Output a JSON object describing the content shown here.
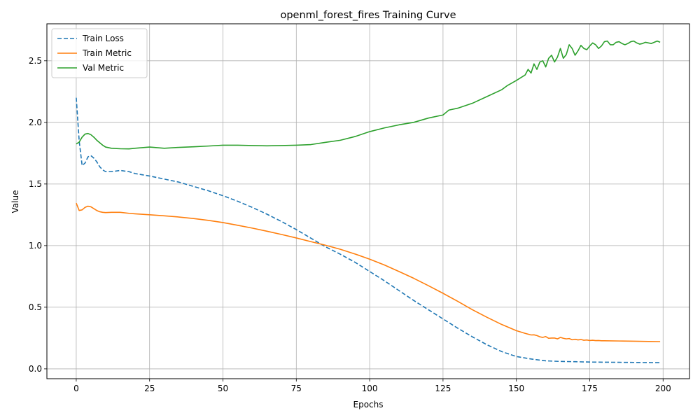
{
  "chart_data": {
    "type": "line",
    "title": "openml_forest_fires Training Curve",
    "xlabel": "Epochs",
    "ylabel": "Value",
    "xlim": [
      -10,
      209
    ],
    "ylim": [
      -0.08,
      2.8
    ],
    "xticks": [
      0,
      25,
      50,
      75,
      100,
      125,
      150,
      175,
      200
    ],
    "yticks": [
      0.0,
      0.5,
      1.0,
      1.5,
      2.0,
      2.5
    ],
    "xtick_labels": [
      "0",
      "25",
      "50",
      "75",
      "100",
      "125",
      "150",
      "175",
      "200"
    ],
    "ytick_labels": [
      "0.0",
      "0.5",
      "1.0",
      "1.5",
      "2.0",
      "2.5"
    ],
    "grid": true,
    "legend_position": "top-left",
    "series": [
      {
        "name": "Train Loss",
        "color": "#1f77b4",
        "dash": "dashed",
        "x": [
          0,
          1,
          2,
          3,
          4,
          5,
          6,
          7,
          8,
          9,
          10,
          12,
          15,
          18,
          20,
          25,
          30,
          35,
          40,
          45,
          50,
          55,
          60,
          65,
          70,
          75,
          80,
          85,
          90,
          95,
          100,
          105,
          110,
          115,
          120,
          125,
          130,
          135,
          140,
          145,
          150,
          155,
          160,
          165,
          170,
          175,
          180,
          185,
          190,
          195,
          199
        ],
        "y": [
          2.2,
          1.85,
          1.65,
          1.67,
          1.72,
          1.73,
          1.71,
          1.68,
          1.64,
          1.615,
          1.6,
          1.6,
          1.61,
          1.6,
          1.585,
          1.565,
          1.54,
          1.515,
          1.48,
          1.445,
          1.405,
          1.36,
          1.31,
          1.255,
          1.195,
          1.13,
          1.06,
          0.99,
          0.93,
          0.865,
          0.79,
          0.715,
          0.635,
          0.555,
          0.48,
          0.405,
          0.33,
          0.26,
          0.195,
          0.14,
          0.1,
          0.08,
          0.065,
          0.06,
          0.058,
          0.055,
          0.054,
          0.053,
          0.052,
          0.051,
          0.05
        ]
      },
      {
        "name": "Train Metric",
        "color": "#ff7f0e",
        "dash": "solid",
        "x": [
          0,
          1,
          2,
          3,
          4,
          5,
          6,
          7,
          8,
          9,
          10,
          12,
          15,
          18,
          20,
          25,
          30,
          35,
          40,
          45,
          50,
          55,
          60,
          65,
          70,
          75,
          80,
          85,
          90,
          95,
          100,
          105,
          110,
          115,
          120,
          125,
          130,
          135,
          140,
          145,
          150,
          153,
          155,
          156,
          157,
          158,
          159,
          160,
          161,
          162,
          163,
          164,
          165,
          166,
          167,
          168,
          169,
          170,
          171,
          172,
          173,
          174,
          175,
          176,
          177,
          178,
          179,
          180,
          185,
          190,
          195,
          199
        ],
        "y": [
          1.345,
          1.285,
          1.29,
          1.31,
          1.32,
          1.315,
          1.3,
          1.285,
          1.275,
          1.27,
          1.268,
          1.27,
          1.27,
          1.262,
          1.258,
          1.25,
          1.242,
          1.232,
          1.22,
          1.205,
          1.187,
          1.165,
          1.142,
          1.117,
          1.09,
          1.062,
          1.032,
          1.003,
          0.97,
          0.932,
          0.89,
          0.843,
          0.79,
          0.735,
          0.675,
          0.613,
          0.548,
          0.48,
          0.418,
          0.36,
          0.31,
          0.288,
          0.275,
          0.276,
          0.27,
          0.26,
          0.255,
          0.262,
          0.248,
          0.25,
          0.25,
          0.243,
          0.255,
          0.248,
          0.243,
          0.246,
          0.236,
          0.24,
          0.235,
          0.238,
          0.232,
          0.234,
          0.23,
          0.232,
          0.229,
          0.23,
          0.228,
          0.228,
          0.226,
          0.224,
          0.222,
          0.221
        ]
      },
      {
        "name": "Val Metric",
        "color": "#2ca02c",
        "dash": "solid",
        "x": [
          0,
          1,
          2,
          3,
          4,
          5,
          6,
          7,
          8,
          9,
          10,
          12,
          15,
          18,
          20,
          25,
          30,
          35,
          40,
          45,
          50,
          55,
          60,
          65,
          70,
          75,
          80,
          85,
          90,
          95,
          100,
          105,
          110,
          115,
          120,
          125,
          127,
          130,
          135,
          140,
          145,
          147,
          150,
          153,
          154,
          155,
          156,
          157,
          158,
          159,
          160,
          161,
          162,
          163,
          164,
          165,
          166,
          167,
          168,
          169,
          170,
          171,
          172,
          173,
          174,
          175,
          176,
          177,
          178,
          179,
          180,
          181,
          182,
          183,
          184,
          185,
          186,
          187,
          188,
          189,
          190,
          191,
          192,
          193,
          194,
          195,
          196,
          197,
          198,
          199
        ],
        "y": [
          1.825,
          1.84,
          1.88,
          1.905,
          1.91,
          1.9,
          1.88,
          1.855,
          1.835,
          1.815,
          1.8,
          1.79,
          1.786,
          1.785,
          1.79,
          1.8,
          1.79,
          1.797,
          1.802,
          1.808,
          1.815,
          1.815,
          1.812,
          1.81,
          1.812,
          1.815,
          1.82,
          1.838,
          1.855,
          1.885,
          1.925,
          1.955,
          1.98,
          2.0,
          2.035,
          2.06,
          2.1,
          2.115,
          2.155,
          2.21,
          2.265,
          2.3,
          2.34,
          2.385,
          2.43,
          2.4,
          2.475,
          2.43,
          2.49,
          2.5,
          2.45,
          2.52,
          2.545,
          2.49,
          2.53,
          2.6,
          2.52,
          2.55,
          2.63,
          2.6,
          2.545,
          2.58,
          2.625,
          2.6,
          2.59,
          2.62,
          2.645,
          2.63,
          2.6,
          2.62,
          2.655,
          2.66,
          2.63,
          2.63,
          2.65,
          2.655,
          2.64,
          2.63,
          2.64,
          2.655,
          2.66,
          2.645,
          2.635,
          2.64,
          2.65,
          2.645,
          2.64,
          2.65,
          2.66,
          2.65
        ]
      }
    ]
  }
}
